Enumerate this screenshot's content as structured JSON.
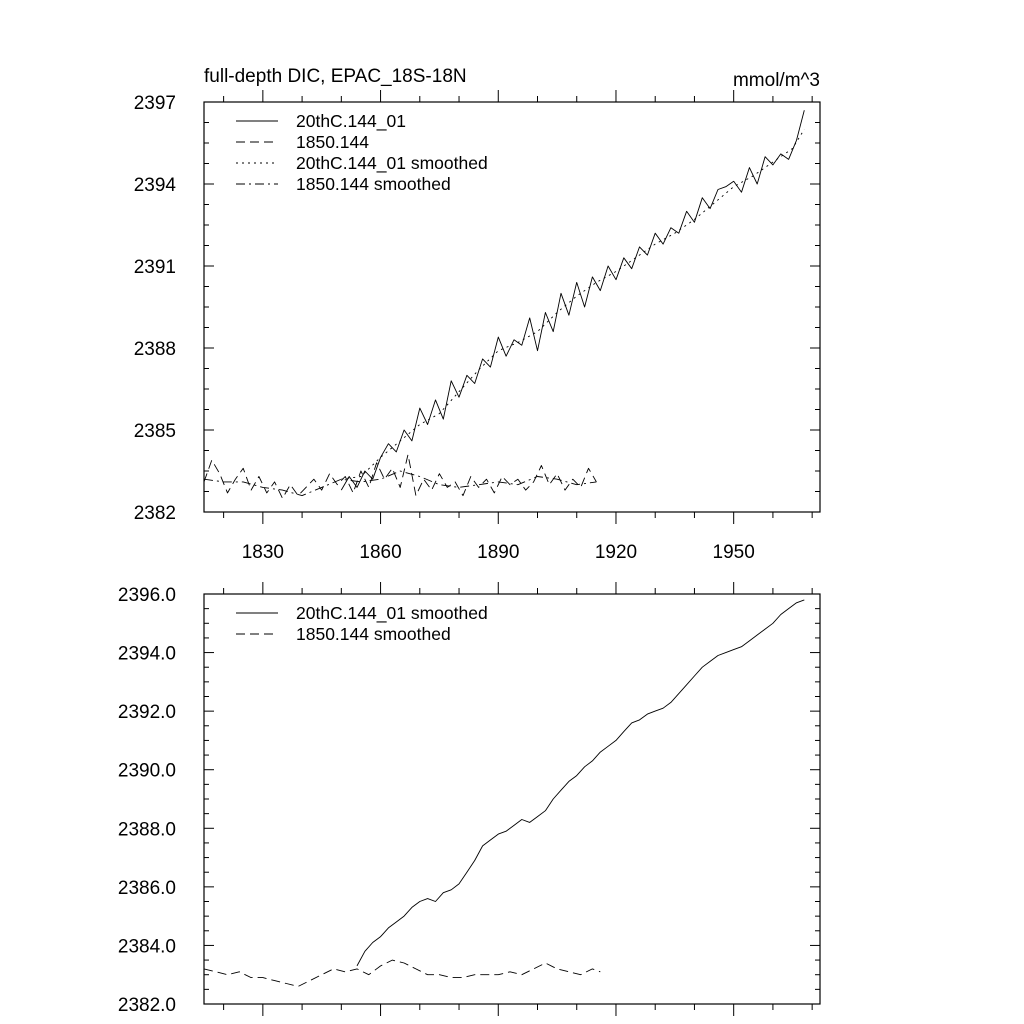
{
  "chart_data": [
    {
      "type": "line",
      "title": "full-depth DIC, EPAC_18S-18N",
      "units": "mmol/m^3",
      "xlim": [
        1815,
        1972
      ],
      "ylim": [
        2382,
        2397
      ],
      "yticks": [
        2382,
        2385,
        2388,
        2391,
        2394,
        2397
      ],
      "ytick_labels": [
        "2382",
        "2385",
        "2388",
        "2391",
        "2394",
        "2397"
      ],
      "xticks": [
        1830,
        1860,
        1890,
        1920,
        1950
      ],
      "xtick_labels": [
        "1830",
        "1860",
        "1890",
        "1920",
        "1950"
      ],
      "legend_position": "top-left",
      "series": [
        {
          "name": "20thC.144_01",
          "style": "solid",
          "x": [
            1850,
            1852,
            1854,
            1856,
            1858,
            1860,
            1862,
            1864,
            1866,
            1868,
            1870,
            1872,
            1874,
            1876,
            1878,
            1880,
            1882,
            1884,
            1886,
            1888,
            1890,
            1892,
            1894,
            1896,
            1898,
            1900,
            1902,
            1904,
            1906,
            1908,
            1910,
            1912,
            1914,
            1916,
            1918,
            1920,
            1922,
            1924,
            1926,
            1928,
            1930,
            1932,
            1934,
            1936,
            1938,
            1940,
            1942,
            1944,
            1946,
            1948,
            1950,
            1952,
            1954,
            1956,
            1958,
            1960,
            1962,
            1964,
            1966,
            1968
          ],
          "y": [
            2382.8,
            2383.3,
            2382.9,
            2383.5,
            2383.2,
            2384.0,
            2384.5,
            2384.2,
            2385.0,
            2384.6,
            2385.8,
            2385.2,
            2386.1,
            2385.4,
            2386.8,
            2386.2,
            2387.0,
            2386.7,
            2387.6,
            2387.3,
            2388.4,
            2387.7,
            2388.3,
            2388.1,
            2389.1,
            2387.9,
            2389.3,
            2388.6,
            2390.0,
            2389.2,
            2390.4,
            2389.5,
            2390.6,
            2390.1,
            2391.0,
            2390.5,
            2391.3,
            2390.9,
            2391.7,
            2391.4,
            2392.2,
            2391.8,
            2392.4,
            2392.2,
            2393.0,
            2392.6,
            2393.5,
            2393.1,
            2393.8,
            2393.9,
            2394.1,
            2393.7,
            2394.6,
            2394.0,
            2395.0,
            2394.7,
            2395.1,
            2394.9,
            2395.6,
            2396.7
          ]
        },
        {
          "name": "1850.144",
          "style": "dashed",
          "x": [
            1815,
            1817,
            1819,
            1821,
            1823,
            1825,
            1827,
            1829,
            1831,
            1833,
            1835,
            1837,
            1839,
            1841,
            1843,
            1845,
            1847,
            1849,
            1851,
            1853,
            1855,
            1857,
            1859,
            1861,
            1863,
            1865,
            1867,
            1869,
            1871,
            1873,
            1875,
            1877,
            1879,
            1881,
            1883,
            1885,
            1887,
            1889,
            1891,
            1893,
            1895,
            1897,
            1899,
            1901,
            1903,
            1905,
            1907,
            1909,
            1911,
            1913,
            1915
          ],
          "y": [
            2383.1,
            2383.9,
            2383.4,
            2382.7,
            2383.2,
            2383.6,
            2382.8,
            2383.3,
            2382.7,
            2383.1,
            2382.5,
            2383.0,
            2382.6,
            2382.9,
            2383.2,
            2382.8,
            2383.4,
            2383.0,
            2383.3,
            2382.7,
            2383.5,
            2382.9,
            2383.8,
            2383.2,
            2383.6,
            2382.9,
            2384.1,
            2382.6,
            2383.2,
            2382.8,
            2383.4,
            2382.9,
            2383.1,
            2382.6,
            2383.3,
            2382.9,
            2383.2,
            2382.7,
            2383.3,
            2383.0,
            2383.2,
            2382.8,
            2383.1,
            2383.7,
            2383.0,
            2383.4,
            2382.8,
            2383.2,
            2382.9,
            2383.6,
            2383.1
          ]
        },
        {
          "name": "20thC.144_01 smoothed",
          "style": "dotted",
          "x": [
            1850,
            1855,
            1860,
            1865,
            1870,
            1875,
            1880,
            1885,
            1890,
            1895,
            1900,
            1905,
            1910,
            1915,
            1920,
            1925,
            1930,
            1935,
            1940,
            1945,
            1950,
            1955,
            1960,
            1965,
            1968
          ],
          "y": [
            2383.2,
            2383.3,
            2384.0,
            2384.6,
            2385.2,
            2385.6,
            2386.4,
            2387.2,
            2387.9,
            2388.2,
            2388.6,
            2389.3,
            2389.9,
            2390.4,
            2390.8,
            2391.3,
            2391.8,
            2392.2,
            2392.7,
            2393.3,
            2393.9,
            2394.3,
            2394.8,
            2395.3,
            2396.0
          ]
        },
        {
          "name": "1850.144 smoothed",
          "style": "dashdot",
          "x": [
            1815,
            1820,
            1825,
            1830,
            1835,
            1840,
            1845,
            1850,
            1855,
            1860,
            1865,
            1870,
            1875,
            1880,
            1885,
            1890,
            1895,
            1900,
            1905,
            1910,
            1915
          ],
          "y": [
            2383.2,
            2383.1,
            2383.1,
            2382.9,
            2382.8,
            2382.6,
            2382.9,
            2383.2,
            2383.1,
            2383.2,
            2383.5,
            2383.3,
            2383.0,
            2382.9,
            2383.0,
            2383.1,
            2383.0,
            2383.3,
            2383.2,
            2383.0,
            2383.1
          ]
        }
      ]
    },
    {
      "type": "line",
      "title": "",
      "units": "",
      "xlim": [
        1815,
        1972
      ],
      "ylim": [
        2382.0,
        2396.0
      ],
      "yticks": [
        2382,
        2384,
        2386,
        2388,
        2390,
        2392,
        2394,
        2396
      ],
      "ytick_labels": [
        "2382.0",
        "2384.0",
        "2386.0",
        "2388.0",
        "2390.0",
        "2392.0",
        "2394.0",
        "2396.0"
      ],
      "xticks": [
        1830,
        1860,
        1890,
        1920,
        1950
      ],
      "xtick_labels": [],
      "legend_position": "top-left",
      "series": [
        {
          "name": "20thC.144_01 smoothed",
          "style": "solid",
          "x": [
            1854,
            1856,
            1858,
            1860,
            1862,
            1864,
            1866,
            1868,
            1870,
            1872,
            1874,
            1876,
            1878,
            1880,
            1882,
            1884,
            1886,
            1888,
            1890,
            1892,
            1894,
            1896,
            1898,
            1900,
            1902,
            1904,
            1906,
            1908,
            1910,
            1912,
            1914,
            1916,
            1918,
            1920,
            1922,
            1924,
            1926,
            1928,
            1930,
            1932,
            1934,
            1936,
            1938,
            1940,
            1942,
            1944,
            1946,
            1948,
            1950,
            1952,
            1954,
            1956,
            1958,
            1960,
            1962,
            1964,
            1966,
            1968
          ],
          "y": [
            2383.3,
            2383.8,
            2384.1,
            2384.3,
            2384.6,
            2384.8,
            2385.0,
            2385.3,
            2385.5,
            2385.6,
            2385.5,
            2385.8,
            2385.9,
            2386.1,
            2386.5,
            2386.9,
            2387.4,
            2387.6,
            2387.8,
            2387.9,
            2388.1,
            2388.3,
            2388.2,
            2388.4,
            2388.6,
            2389.0,
            2389.3,
            2389.6,
            2389.8,
            2390.1,
            2390.3,
            2390.6,
            2390.8,
            2391.0,
            2391.3,
            2391.6,
            2391.7,
            2391.9,
            2392.0,
            2392.1,
            2392.3,
            2392.6,
            2392.9,
            2393.2,
            2393.5,
            2393.7,
            2393.9,
            2394.0,
            2394.1,
            2394.2,
            2394.4,
            2394.6,
            2394.8,
            2395.0,
            2395.3,
            2395.5,
            2395.7,
            2395.8
          ]
        },
        {
          "name": "1850.144 smoothed",
          "style": "dashed",
          "x": [
            1815,
            1818,
            1821,
            1824,
            1827,
            1830,
            1833,
            1836,
            1839,
            1842,
            1845,
            1848,
            1851,
            1854,
            1857,
            1860,
            1863,
            1866,
            1869,
            1872,
            1875,
            1878,
            1881,
            1884,
            1887,
            1890,
            1893,
            1896,
            1899,
            1902,
            1905,
            1908,
            1911,
            1914,
            1916
          ],
          "y": [
            2383.2,
            2383.1,
            2383.0,
            2383.1,
            2382.9,
            2382.9,
            2382.8,
            2382.7,
            2382.6,
            2382.8,
            2383.0,
            2383.2,
            2383.1,
            2383.2,
            2383.0,
            2383.3,
            2383.5,
            2383.4,
            2383.2,
            2383.0,
            2383.0,
            2382.9,
            2382.9,
            2383.0,
            2383.0,
            2383.0,
            2383.1,
            2383.0,
            2383.2,
            2383.4,
            2383.2,
            2383.1,
            2383.0,
            2383.2,
            2383.1
          ]
        }
      ]
    }
  ]
}
